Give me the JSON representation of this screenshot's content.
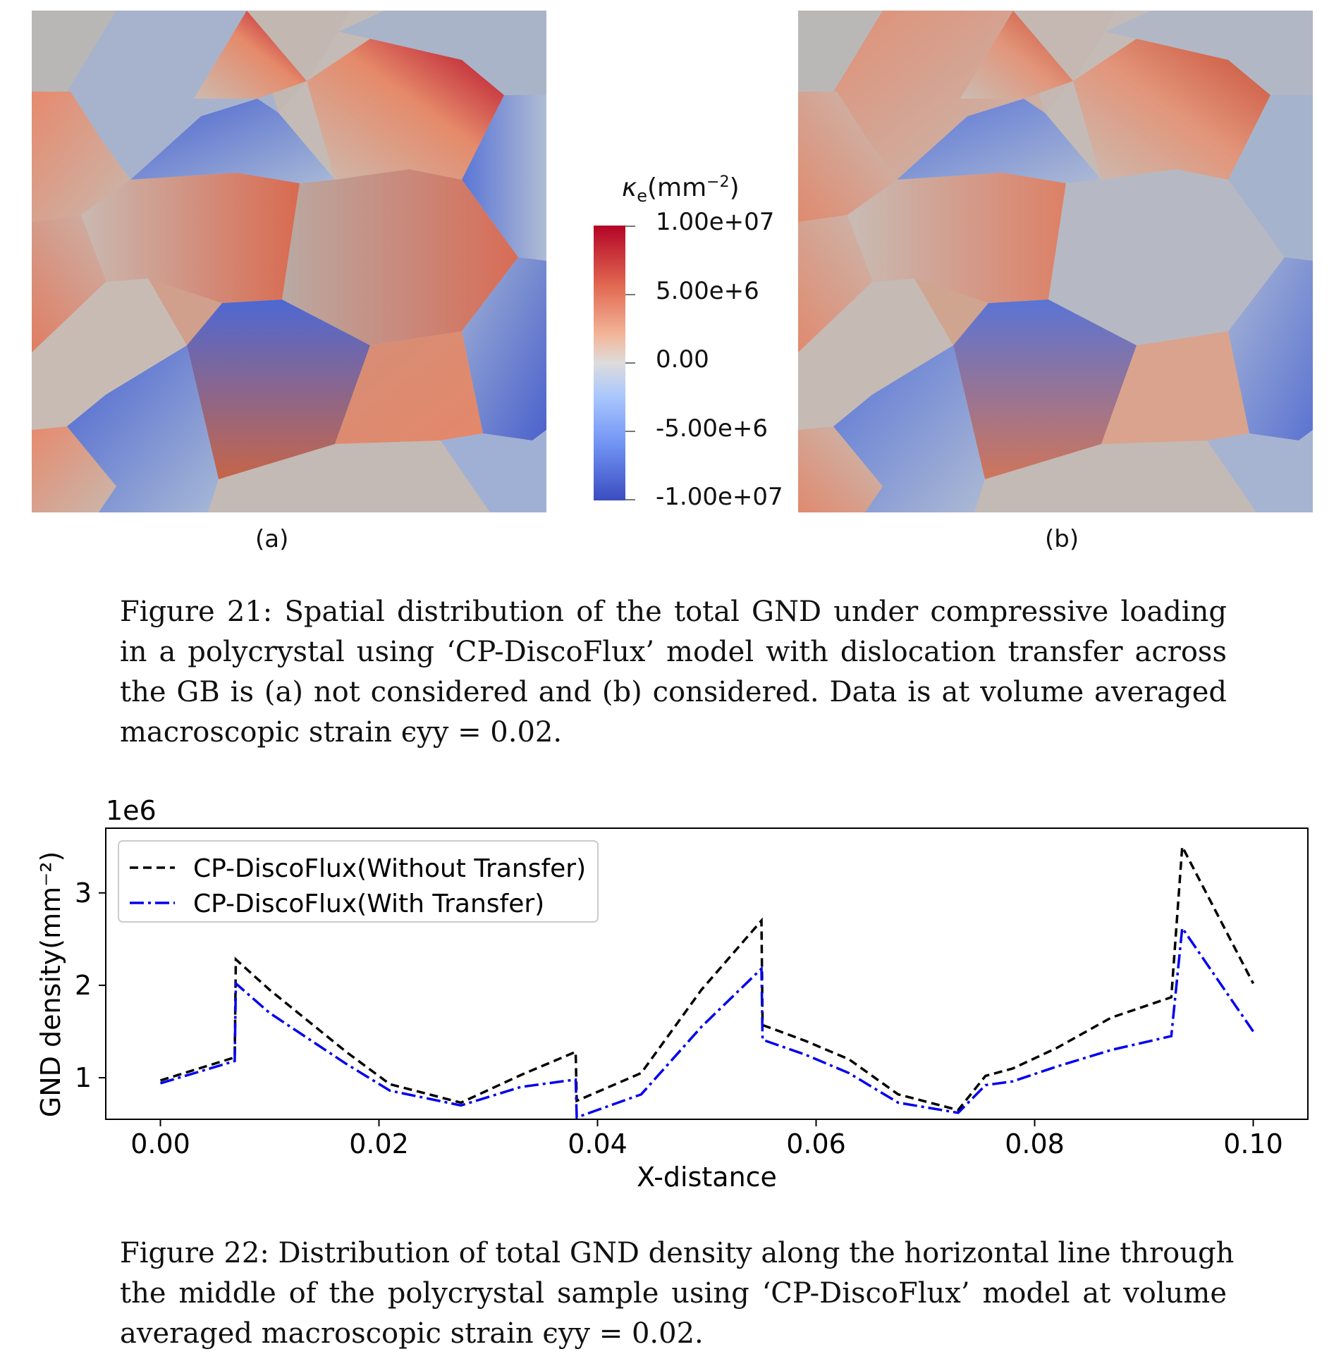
{
  "figure21": {
    "panel_a_label": "(a)",
    "panel_b_label": "(b)",
    "colorbar": {
      "title_symbol": "κ",
      "title_sub": "e",
      "title_unit_open": "(mm",
      "title_sup": "−2",
      "title_close": ")",
      "ticks": [
        "1.00e+07",
        "5.00e+6",
        "0.00",
        "-5.00e+6",
        "-1.00e+07"
      ],
      "colors": [
        "#b40426",
        "#e26952",
        "#dddcdc",
        "#6f92f3",
        "#3b4cc0"
      ]
    },
    "caption_lines": [
      "Figure 21:  Spatial distribution of the total GND under compressive loading",
      "in a polycrystal using ‘CP-DiscoFlux’ model with dislocation transfer across",
      "the GB is (a) not considered and (b) considered.  Data is at volume averaged",
      "macroscopic strain ϵyy = 0.02."
    ]
  },
  "figure22": {
    "caption_lines": [
      "Figure 22: Distribution of total GND density along the horizontal line through",
      "the middle of the polycrystal sample using ‘CP-DiscoFlux’ model at volume",
      "averaged macroscopic strain ϵyy = 0.02."
    ]
  },
  "chart_data": {
    "type": "line",
    "xlabel": "X-distance",
    "ylabel": "GND density(mm⁻²)",
    "y_scale_label": "1e6",
    "xlim": [
      -0.005,
      0.105
    ],
    "ylim": [
      0.55,
      3.7
    ],
    "xticks": [
      "0.00",
      "0.02",
      "0.04",
      "0.06",
      "0.08",
      "0.10"
    ],
    "yticks": [
      "1",
      "2",
      "3"
    ],
    "legend_position": "top-left",
    "series": [
      {
        "name": "CP-DiscoFlux(Without Transfer)",
        "color": "#000000",
        "style": "dashed",
        "x": [
          0.0,
          0.0068,
          0.0069,
          0.01,
          0.017,
          0.021,
          0.0275,
          0.033,
          0.038,
          0.0381,
          0.044,
          0.0495,
          0.055,
          0.0551,
          0.059,
          0.063,
          0.0675,
          0.073,
          0.0755,
          0.078,
          0.082,
          0.087,
          0.0925,
          0.0935,
          0.1
        ],
        "y": [
          0.97,
          1.22,
          2.28,
          1.95,
          1.28,
          0.93,
          0.73,
          1.03,
          1.28,
          0.75,
          1.05,
          1.95,
          2.7,
          1.57,
          1.4,
          1.2,
          0.82,
          0.65,
          1.02,
          1.1,
          1.32,
          1.65,
          1.87,
          3.5,
          2.02
        ]
      },
      {
        "name": "CP-DiscoFlux(With Transfer)",
        "color": "#0000ee",
        "style": "dashdot",
        "x": [
          0.0,
          0.0068,
          0.0069,
          0.01,
          0.017,
          0.021,
          0.0275,
          0.033,
          0.038,
          0.0381,
          0.044,
          0.0495,
          0.055,
          0.0551,
          0.059,
          0.063,
          0.0675,
          0.073,
          0.0755,
          0.078,
          0.082,
          0.087,
          0.0925,
          0.0935,
          0.1
        ],
        "y": [
          0.94,
          1.18,
          2.02,
          1.7,
          1.15,
          0.86,
          0.7,
          0.9,
          0.98,
          0.57,
          0.82,
          1.55,
          2.18,
          1.41,
          1.25,
          1.05,
          0.73,
          0.62,
          0.92,
          0.96,
          1.12,
          1.3,
          1.45,
          2.62,
          1.5
        ]
      }
    ]
  }
}
